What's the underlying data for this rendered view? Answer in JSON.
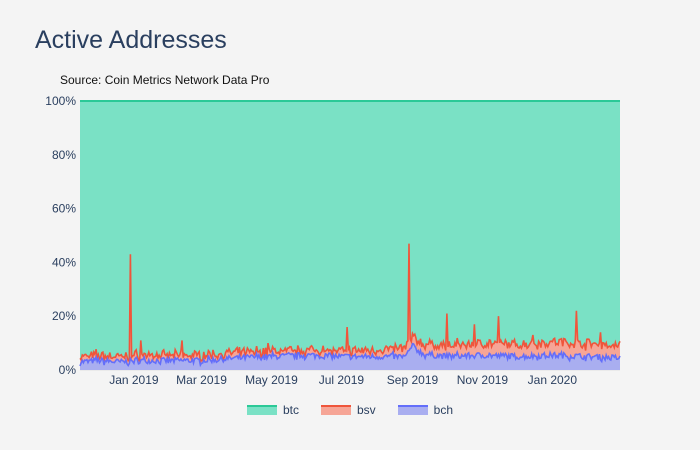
{
  "title": "Active Addresses",
  "subtitle": "Source: Coin Metrics Network Data Pro",
  "chart_data": {
    "type": "area",
    "stacking": "percent",
    "x_start": "2018-11-15",
    "x_end": "2020-02-29",
    "x_ticks": [
      "Jan 2019",
      "Mar 2019",
      "May 2019",
      "Jul 2019",
      "Sep 2019",
      "Nov 2019",
      "Jan 2020"
    ],
    "y_ticks": [
      "0%",
      "20%",
      "40%",
      "60%",
      "80%",
      "100%"
    ],
    "ylim": [
      0,
      100
    ],
    "grid": true,
    "legend_position": "bottom-center",
    "series": [
      {
        "name": "btc",
        "color": "#2bc997",
        "fill": "#7ae1c5",
        "description": "remainder to 100%"
      },
      {
        "name": "bsv",
        "color": "#ef553b",
        "fill": "#f6a596"
      },
      {
        "name": "bch",
        "color": "#636efa",
        "fill": "#a9aef0"
      }
    ],
    "bch_points": [
      [
        "2018-11-15",
        3
      ],
      [
        "2018-12-01",
        3.5
      ],
      [
        "2018-12-20",
        3
      ],
      [
        "2019-01-10",
        3.5
      ],
      [
        "2019-02-01",
        3.5
      ],
      [
        "2019-03-01",
        3.5
      ],
      [
        "2019-04-01",
        4.5
      ],
      [
        "2019-05-01",
        5
      ],
      [
        "2019-06-01",
        5.5
      ],
      [
        "2019-07-01",
        5
      ],
      [
        "2019-08-01",
        5
      ],
      [
        "2019-08-26",
        5
      ],
      [
        "2019-09-01",
        9
      ],
      [
        "2019-09-10",
        6
      ],
      [
        "2019-10-01",
        5
      ],
      [
        "2019-11-01",
        5.5
      ],
      [
        "2019-12-01",
        5
      ],
      [
        "2020-01-01",
        5.5
      ],
      [
        "2020-02-01",
        5
      ],
      [
        "2020-02-29",
        4.5
      ]
    ],
    "bsv_extra_points": [
      [
        "2018-11-15",
        1.5
      ],
      [
        "2018-12-01",
        1.5
      ],
      [
        "2019-01-01",
        1.5
      ],
      [
        "2019-02-01",
        1.5
      ],
      [
        "2019-03-01",
        1.5
      ],
      [
        "2019-04-01",
        1.5
      ],
      [
        "2019-05-01",
        1.5
      ],
      [
        "2019-06-01",
        1.5
      ],
      [
        "2019-07-01",
        1.5
      ],
      [
        "2019-08-01",
        2
      ],
      [
        "2019-09-01",
        3
      ],
      [
        "2019-10-01",
        3.5
      ],
      [
        "2019-11-01",
        4
      ],
      [
        "2019-12-01",
        4
      ],
      [
        "2020-01-01",
        4.5
      ],
      [
        "2020-02-01",
        4.5
      ],
      [
        "2020-02-29",
        4
      ]
    ],
    "bsv_spikes": [
      [
        "2018-12-29",
        43
      ],
      [
        "2019-01-07",
        11
      ],
      [
        "2019-02-12",
        11
      ],
      [
        "2019-04-28",
        10
      ],
      [
        "2019-06-15",
        9
      ],
      [
        "2019-07-06",
        16
      ],
      [
        "2019-08-29",
        47
      ],
      [
        "2019-10-01",
        21
      ],
      [
        "2019-10-25",
        17
      ],
      [
        "2019-11-15",
        20
      ],
      [
        "2019-12-15",
        13
      ],
      [
        "2020-01-22",
        22
      ],
      [
        "2020-02-12",
        14
      ]
    ]
  }
}
